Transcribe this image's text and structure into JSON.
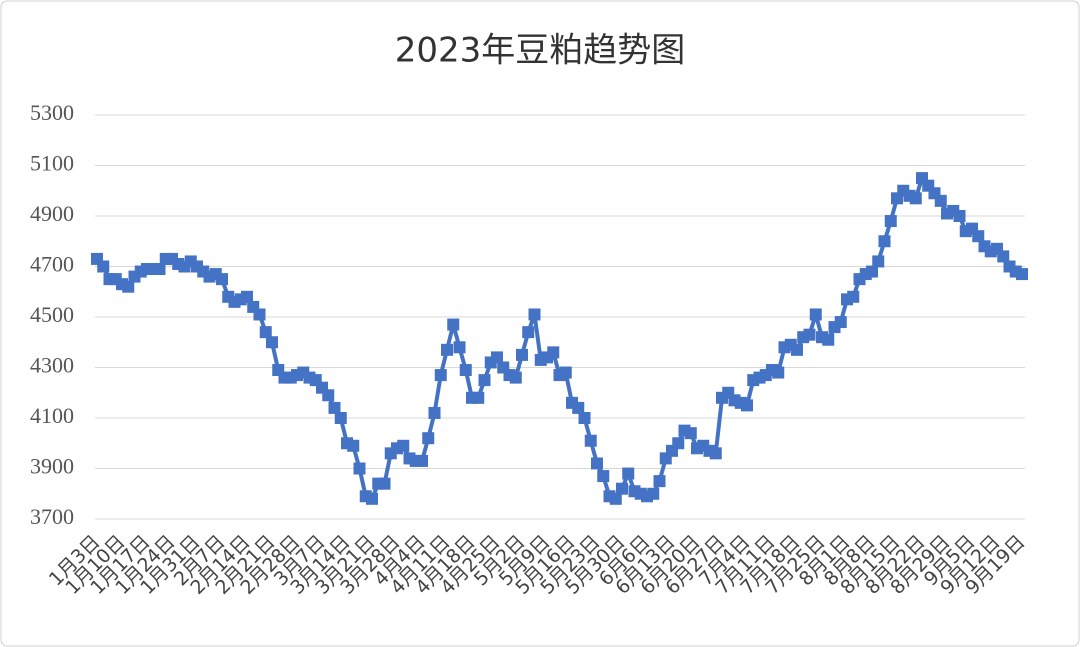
{
  "chart_data": {
    "type": "line",
    "title": "2023年豆粕趋势图",
    "categories": [
      "1月3日",
      null,
      null,
      null,
      "1月10日",
      null,
      null,
      null,
      "1月17日",
      null,
      null,
      null,
      "1月24日",
      null,
      null,
      null,
      "1月31日",
      null,
      null,
      null,
      "2月7日",
      null,
      null,
      null,
      "2月14日",
      null,
      null,
      null,
      "2月21日",
      null,
      null,
      null,
      "2月28日",
      null,
      null,
      null,
      "3月7日",
      null,
      null,
      null,
      "3月14日",
      null,
      null,
      null,
      "3月21日",
      null,
      null,
      null,
      "3月28日",
      null,
      null,
      null,
      "4月4日",
      null,
      null,
      null,
      "4月11日",
      null,
      null,
      null,
      "4月18日",
      null,
      null,
      null,
      "4月25日",
      null,
      null,
      null,
      "5月2日",
      null,
      null,
      null,
      "5月9日",
      null,
      null,
      null,
      "5月16日",
      null,
      null,
      null,
      "5月23日",
      null,
      null,
      null,
      "5月30日",
      null,
      null,
      null,
      "6月6日",
      null,
      null,
      null,
      "6月13日",
      null,
      null,
      null,
      "6月20日",
      null,
      null,
      null,
      "6月27日",
      null,
      null,
      null,
      "7月4日",
      null,
      null,
      null,
      "7月11日",
      null,
      null,
      null,
      "7月18日",
      null,
      null,
      null,
      "7月25日",
      null,
      null,
      null,
      "8月1日",
      null,
      null,
      null,
      "8月8日",
      null,
      null,
      null,
      "8月15日",
      null,
      null,
      null,
      "8月22日",
      null,
      null,
      null,
      "8月29日",
      null,
      null,
      null,
      "9月5日",
      null,
      null,
      null,
      "9月12日",
      null,
      null,
      null,
      "9月19日"
    ],
    "series": [
      {
        "name": "豆粕",
        "color": "#4472c4",
        "values": [
          4730,
          4700,
          4650,
          4650,
          4630,
          4620,
          4660,
          4680,
          4690,
          4690,
          4690,
          4730,
          4730,
          4710,
          4700,
          4720,
          4700,
          4680,
          4660,
          4670,
          4650,
          4580,
          4560,
          4570,
          4580,
          4540,
          4510,
          4440,
          4400,
          4290,
          4260,
          4260,
          4270,
          4280,
          4260,
          4250,
          4220,
          4190,
          4140,
          4100,
          4000,
          3990,
          3900,
          3790,
          3780,
          3840,
          3840,
          3960,
          3980,
          3990,
          3940,
          3930,
          3930,
          4020,
          4120,
          4270,
          4370,
          4470,
          4380,
          4290,
          4180,
          4180,
          4250,
          4320,
          4340,
          4300,
          4270,
          4260,
          4350,
          4440,
          4510,
          4330,
          4340,
          4360,
          4270,
          4280,
          4160,
          4140,
          4100,
          4010,
          3920,
          3870,
          3790,
          3780,
          3820,
          3880,
          3810,
          3800,
          3790,
          3800,
          3850,
          3940,
          3970,
          4000,
          4050,
          4040,
          3980,
          3990,
          3970,
          3960,
          4180,
          4200,
          4170,
          4160,
          4150,
          4250,
          4260,
          4270,
          4290,
          4280,
          4380,
          4390,
          4370,
          4420,
          4430,
          4510,
          4420,
          4410,
          4460,
          4480,
          4570,
          4580,
          4650,
          4670,
          4680,
          4720,
          4800,
          4880,
          4970,
          5000,
          4980,
          4970,
          5050,
          5020,
          4990,
          4960,
          4910,
          4920,
          4900,
          4840,
          4850,
          4820,
          4780,
          4760,
          4770,
          4740,
          4700,
          4680,
          4670
        ]
      }
    ],
    "ylim": [
      3700,
      5300
    ],
    "yticks": [
      3700,
      3900,
      4100,
      4300,
      4500,
      4700,
      4900,
      5100,
      5300
    ],
    "grid": true
  }
}
